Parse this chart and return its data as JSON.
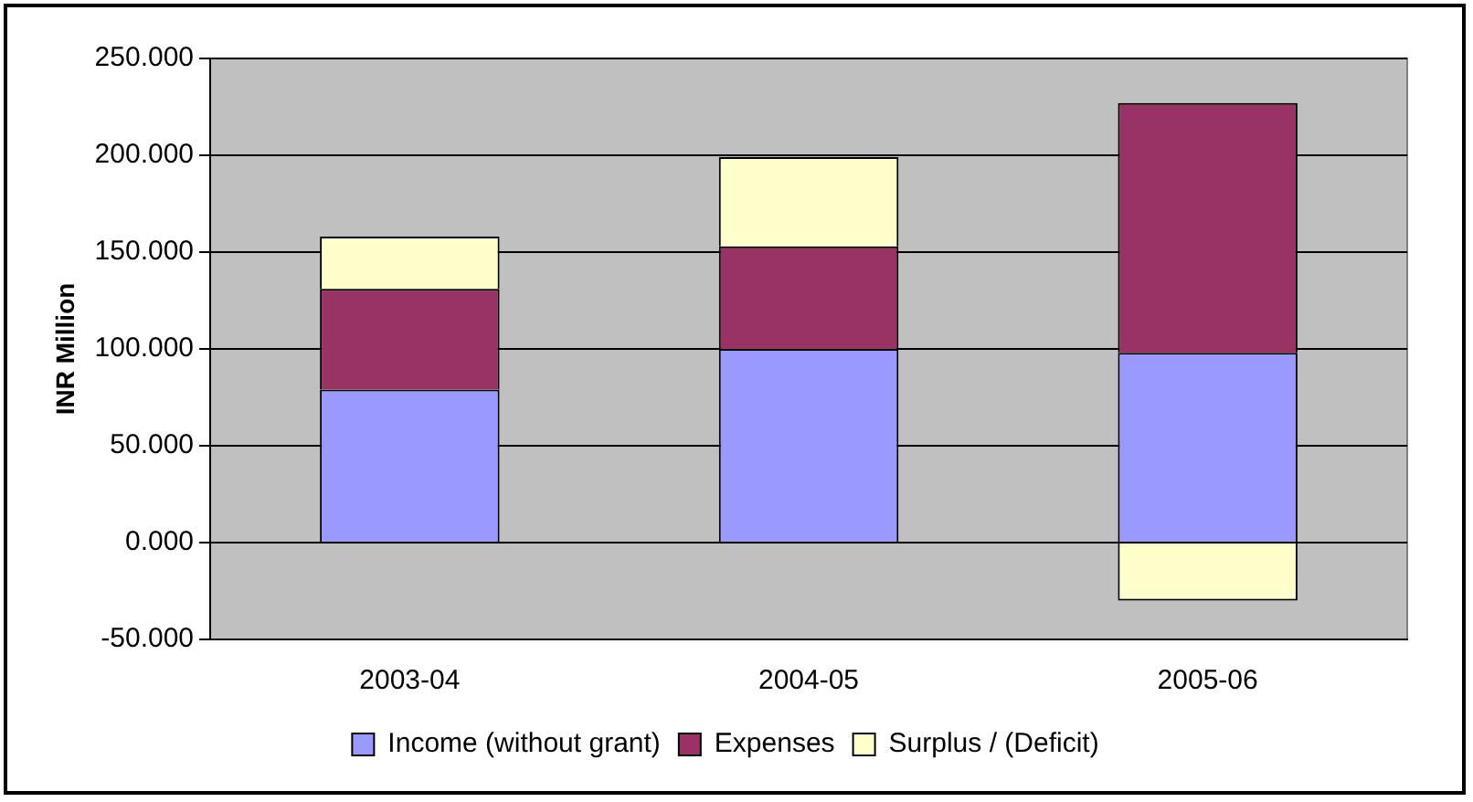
{
  "chart_data": {
    "type": "bar",
    "stacked": true,
    "ylabel": "INR Million",
    "categories": [
      "2003-04",
      "2004-05",
      "2005-06"
    ],
    "series": [
      {
        "name": "Income (without grant)",
        "color": "#9999ff",
        "values": [
          79,
          100,
          98
        ]
      },
      {
        "name": "Expenses",
        "color": "#993366",
        "values": [
          52,
          53,
          129
        ]
      },
      {
        "name": "Surplus / (Deficit)",
        "color": "#ffffcc",
        "values": [
          27,
          46,
          -30
        ]
      }
    ],
    "ylim": [
      -50,
      250
    ],
    "yticks": [
      {
        "value": -50,
        "label": "-50.000"
      },
      {
        "value": 0,
        "label": "0.000"
      },
      {
        "value": 50,
        "label": "50.000"
      },
      {
        "value": 100,
        "label": "100.000"
      },
      {
        "value": 150,
        "label": "150.000"
      },
      {
        "value": 200,
        "label": "200.000"
      },
      {
        "value": 250,
        "label": "250.000"
      }
    ],
    "grid": "y",
    "legend": "bottom"
  }
}
